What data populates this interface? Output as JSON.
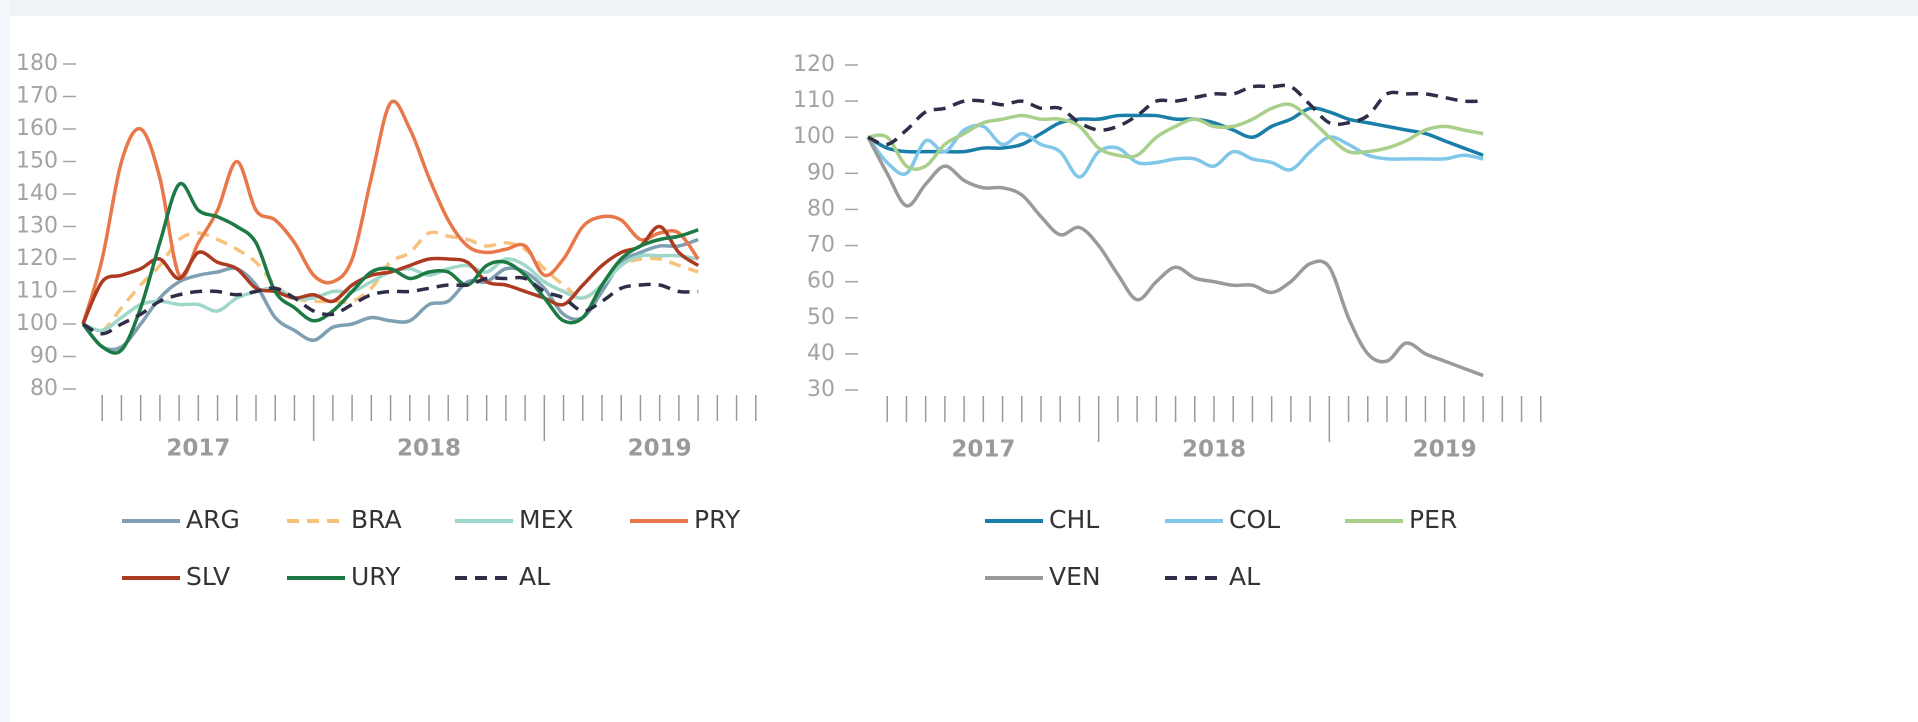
{
  "chart_data": [
    {
      "type": "line",
      "x": [
        2017,
        2017.083,
        2017.167,
        2017.25,
        2017.333,
        2017.417,
        2017.5,
        2017.583,
        2017.667,
        2017.75,
        2017.833,
        2017.917,
        2018,
        2018.083,
        2018.167,
        2018.25,
        2018.333,
        2018.417,
        2018.5,
        2018.583,
        2018.667,
        2018.75,
        2018.833,
        2018.917,
        2019,
        2019.083,
        2019.167,
        2019.25,
        2019.333,
        2019.417,
        2019.5,
        2019.583,
        2019.667
      ],
      "xlim": [
        2017,
        2020
      ],
      "xticks": [
        {
          "value": 2017.5,
          "label": "2017"
        },
        {
          "value": 2018.5,
          "label": "2018"
        },
        {
          "value": 2019.5,
          "label": "2019"
        }
      ],
      "ylim": [
        80,
        180
      ],
      "yticks": [
        80,
        90,
        100,
        110,
        120,
        130,
        140,
        150,
        160,
        170,
        180
      ],
      "series": [
        {
          "name": "ARG",
          "color": "#7f9fb2",
          "dashed": false,
          "values": [
            100,
            93,
            93,
            100,
            108,
            113,
            115,
            116,
            117,
            112,
            102,
            98,
            95,
            99,
            100,
            102,
            101,
            101,
            106,
            107,
            113,
            113,
            117,
            116,
            111,
            103,
            102,
            110,
            119,
            122,
            124,
            124,
            126
          ]
        },
        {
          "name": "BRA",
          "color": "#f6c27c",
          "dashed": true,
          "values": [
            100,
            98,
            105,
            112,
            118,
            126,
            128,
            126,
            123,
            119,
            112,
            108,
            107,
            107,
            107,
            111,
            119,
            122,
            128,
            127,
            126,
            124,
            125,
            123,
            117,
            112,
            108,
            112,
            118,
            120,
            120,
            118,
            116
          ]
        },
        {
          "name": "MEX",
          "color": "#9fd8cb",
          "dashed": false,
          "values": [
            100,
            98,
            102,
            106,
            107,
            106,
            106,
            104,
            108,
            110,
            111,
            108,
            108,
            110,
            110,
            113,
            116,
            117,
            115,
            117,
            118,
            116,
            120,
            118,
            113,
            110,
            108,
            112,
            118,
            121,
            121,
            121,
            120
          ]
        },
        {
          "name": "PRY",
          "color": "#e8774a",
          "dashed": false,
          "values": [
            100,
            120,
            150,
            160,
            145,
            115,
            125,
            135,
            150,
            135,
            132,
            125,
            115,
            113,
            120,
            145,
            168,
            160,
            145,
            132,
            124,
            122,
            123,
            124,
            115,
            120,
            130,
            133,
            132,
            126,
            128,
            128,
            120
          ]
        },
        {
          "name": "SLV",
          "color": "#ad3b22",
          "dashed": false,
          "values": [
            100,
            113,
            115,
            117,
            120,
            114,
            122,
            119,
            117,
            111,
            110,
            108,
            109,
            107,
            112,
            115,
            116,
            118,
            120,
            120,
            119,
            113,
            112,
            110,
            108,
            106,
            112,
            118,
            122,
            124,
            130,
            122,
            118
          ]
        },
        {
          "name": "URY",
          "color": "#1d7a45",
          "dashed": false,
          "values": [
            100,
            93,
            92,
            105,
            125,
            143,
            135,
            133,
            130,
            125,
            110,
            105,
            101,
            104,
            110,
            116,
            117,
            114,
            116,
            116,
            112,
            118,
            119,
            115,
            108,
            101,
            102,
            112,
            120,
            124,
            126,
            127,
            129
          ]
        },
        {
          "name": "AL",
          "color": "#2e2e48",
          "dashed": true,
          "values": [
            100,
            97,
            100,
            103,
            107,
            109,
            110,
            110,
            109,
            110,
            111,
            108,
            104,
            103,
            106,
            109,
            110,
            110,
            111,
            112,
            112,
            114,
            114,
            114,
            110,
            108,
            104,
            107,
            111,
            112,
            112,
            110,
            110
          ]
        }
      ]
    },
    {
      "type": "line",
      "x": [
        2017,
        2017.083,
        2017.167,
        2017.25,
        2017.333,
        2017.417,
        2017.5,
        2017.583,
        2017.667,
        2017.75,
        2017.833,
        2017.917,
        2018,
        2018.083,
        2018.167,
        2018.25,
        2018.333,
        2018.417,
        2018.5,
        2018.583,
        2018.667,
        2018.75,
        2018.833,
        2018.917,
        2019,
        2019.083,
        2019.167,
        2019.25,
        2019.333,
        2019.417,
        2019.5,
        2019.583,
        2019.667
      ],
      "xlim": [
        2017,
        2020
      ],
      "xticks": [
        {
          "value": 2017.5,
          "label": "2017"
        },
        {
          "value": 2018.5,
          "label": "2018"
        },
        {
          "value": 2019.5,
          "label": "2019"
        }
      ],
      "ylim": [
        30,
        120
      ],
      "yticks": [
        30,
        40,
        50,
        60,
        70,
        80,
        90,
        100,
        110,
        120
      ],
      "series": [
        {
          "name": "CHL",
          "color": "#1a7fa8",
          "dashed": false,
          "values": [
            100,
            97,
            96,
            96,
            96,
            96,
            97,
            97,
            98,
            101,
            104,
            105,
            105,
            106,
            106,
            106,
            105,
            105,
            104,
            102,
            100,
            103,
            105,
            108,
            107,
            105,
            104,
            103,
            102,
            101,
            99,
            97,
            95
          ]
        },
        {
          "name": "COL",
          "color": "#80c7ea",
          "dashed": false,
          "values": [
            100,
            93,
            90,
            99,
            96,
            102,
            103,
            98,
            101,
            98,
            96,
            89,
            96,
            97,
            93,
            93,
            94,
            94,
            92,
            96,
            94,
            93,
            91,
            96,
            100,
            98,
            95,
            94,
            94,
            94,
            94,
            95,
            94
          ]
        },
        {
          "name": "PER",
          "color": "#a9d08b",
          "dashed": false,
          "values": [
            100,
            100,
            92,
            92,
            98,
            101,
            104,
            105,
            106,
            105,
            105,
            103,
            97,
            95,
            95,
            100,
            103,
            105,
            103,
            103,
            105,
            108,
            109,
            105,
            100,
            96,
            96,
            97,
            99,
            102,
            103,
            102,
            101
          ]
        },
        {
          "name": "VEN",
          "color": "#9a9a9a",
          "dashed": false,
          "values": [
            100,
            90,
            81,
            87,
            92,
            88,
            86,
            86,
            84,
            78,
            73,
            75,
            70,
            62,
            55,
            60,
            64,
            61,
            60,
            59,
            59,
            57,
            60,
            65,
            64,
            50,
            40,
            38,
            43,
            40,
            38,
            36,
            34
          ]
        },
        {
          "name": "AL",
          "color": "#2e2e48",
          "dashed": true,
          "values": [
            100,
            98,
            102,
            107,
            108,
            110,
            110,
            109,
            110,
            108,
            108,
            104,
            102,
            103,
            106,
            110,
            110,
            111,
            112,
            112,
            114,
            114,
            114,
            109,
            104,
            104,
            106,
            112,
            112,
            112,
            111,
            110,
            110
          ]
        }
      ]
    }
  ]
}
